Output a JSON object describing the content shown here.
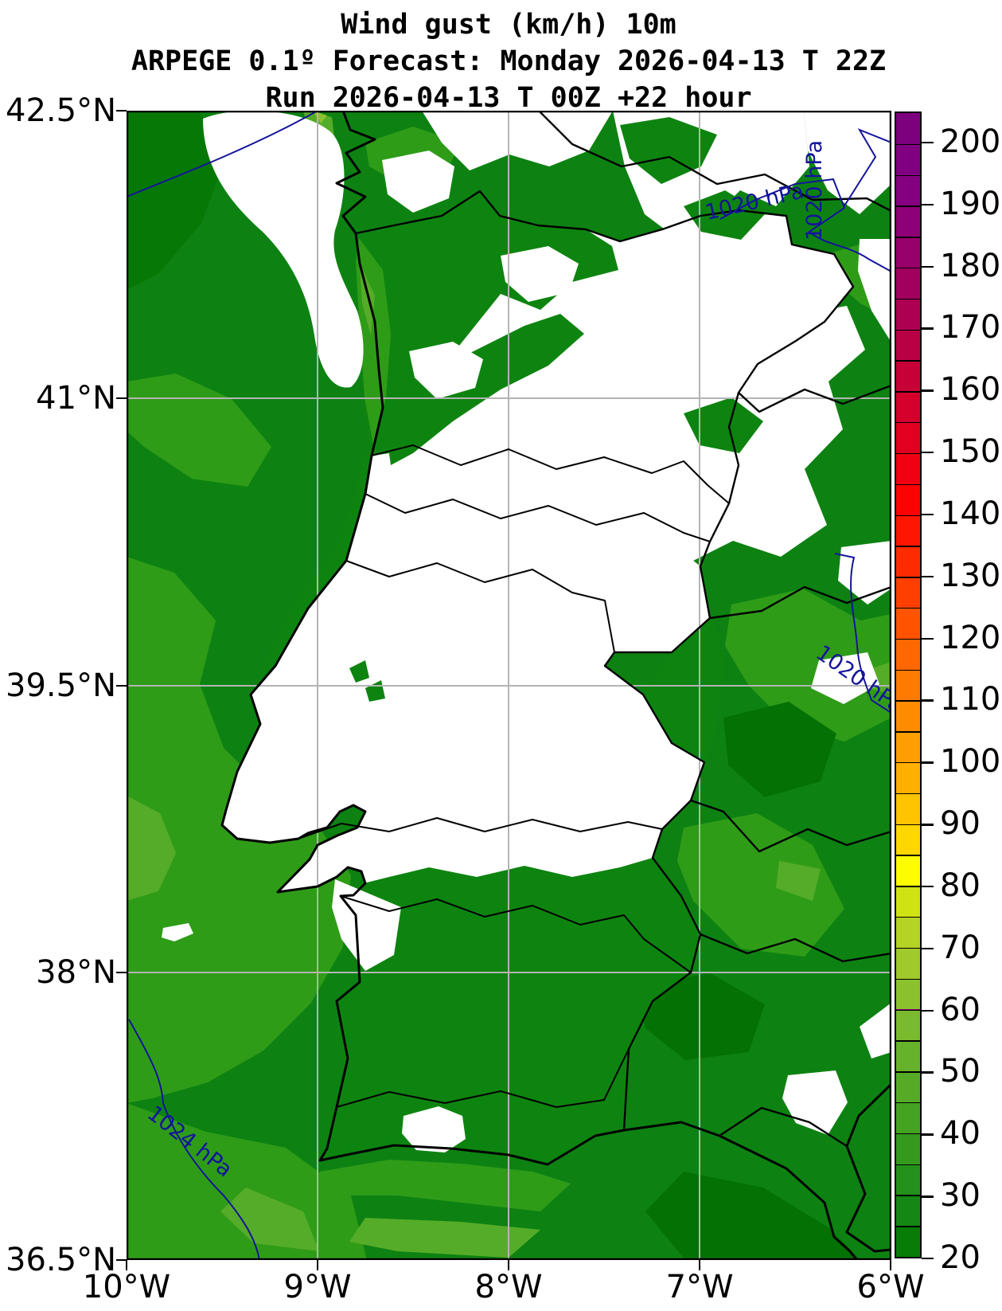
{
  "title": {
    "line1": "Wind gust (km/h) 10m",
    "line2": "ARPEGE 0.1º Forecast: Monday 2026-04-13 T 22Z",
    "line3": "Run 2026-04-13 T 00Z +22 hour"
  },
  "axes": {
    "lat_labels": [
      "42.5°N",
      "41°N",
      "39.5°N",
      "38°N",
      "36.5°N"
    ],
    "lon_labels": [
      "10°W",
      "9°W",
      "8°W",
      "7°W",
      "6°W"
    ]
  },
  "map": {
    "lat_range": [
      36.5,
      42.5
    ],
    "lon_range": [
      -10,
      -6
    ],
    "variable": "Wind gust (km/h) 10m",
    "model": "ARPEGE 0.1º",
    "forecast_valid": "Monday 2026-04-13 T 22Z",
    "run": "2026-04-13 T 00Z",
    "lead_hours": "+22 hour"
  },
  "isobars": {
    "line_color": "#14149B",
    "labels": [
      {
        "text": "1020 hPa"
      },
      {
        "text": "1020 hPa"
      },
      {
        "text": "1020 hPa"
      },
      {
        "text": "1024 hPa"
      }
    ]
  },
  "colorbar": {
    "min": 20,
    "max": 205,
    "segment_step": 5,
    "tick_labels": [
      "200",
      "190",
      "180",
      "170",
      "160",
      "150",
      "140",
      "130",
      "120",
      "110",
      "100",
      "90",
      "80",
      "70",
      "60",
      "50",
      "40",
      "30",
      "20"
    ],
    "tick_values": [
      200,
      190,
      180,
      170,
      160,
      150,
      140,
      130,
      120,
      110,
      100,
      90,
      80,
      70,
      60,
      50,
      40,
      30,
      20
    ],
    "segment_colors_bottom_to_top": [
      "#077C07",
      "#158714",
      "#24911A",
      "#349A1D",
      "#44A321",
      "#55AB26",
      "#67B22B",
      "#79BA2E",
      "#8CC12E",
      "#A0C92B",
      "#B5D324",
      "#CFE312",
      "#FDFD00",
      "#FFD700",
      "#FFC300",
      "#FFAF00",
      "#FF9E00",
      "#FF8C00",
      "#FF7A00",
      "#FF6700",
      "#FF5300",
      "#FF3F00",
      "#FF2B00",
      "#FF1600",
      "#FB0203",
      "#F00011",
      "#E2001E",
      "#D4002B",
      "#C70038",
      "#BA0045",
      "#AE0052",
      "#A2005F",
      "#97006B",
      "#8D0077",
      "#850080",
      "#810081",
      "#7D007D"
    ]
  },
  "colors": {
    "ocean_base": "#0D8212",
    "land_below_threshold": "#FFFFFF",
    "coastline": "#000000",
    "gridline": "#B4B4B4",
    "shade_dark": "#047104",
    "shade_darker": "#067806",
    "shade_light": "#2F9C18",
    "shade_lighter": "#55AC28"
  }
}
